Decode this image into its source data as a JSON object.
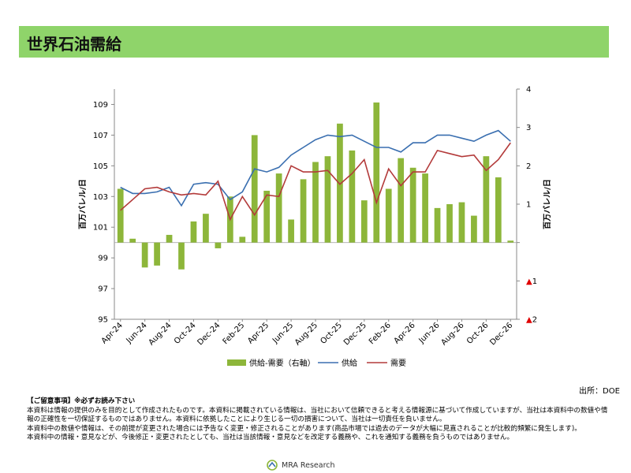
{
  "title": "世界石油需給",
  "source": "出所：DOE",
  "notice": {
    "heading": "【ご留意事項】※必ずお読み下さい",
    "lines": [
      "本資料は情報の提供のみを目的として作成されたものです。本資料に掲載されている情報は、当社において信頼できると考える情報源に基づいて作成していますが、当社は本資料中の数値や情報の正確性を一切保証するものではありません。本資料に依拠したことにより生じる一切の損害について、当社は一切責任を負いません。",
      "本資料中の数値や情報は、その前提が変更された場合には予告なく変更・修正されることがあります(商品市場では過去のデータが大幅に見直されることが比較的頻繁に発生します)。",
      "本資料中の情報・意見などが、今後修正・変更されたとしても、当社は当該情報・意見などを改定する義務や、これを通知する義務を負うものではありません。"
    ]
  },
  "footer": {
    "company": "MRA Research"
  },
  "colors": {
    "title_bar": "#8fd46a",
    "bar": "#8db63a",
    "supply": "#3a6fb0",
    "demand": "#b33a3a",
    "negative_marker": "#e00000"
  },
  "chart_data": {
    "type": "bar+line",
    "x": [
      "Apr-24",
      "May-24",
      "Jun-24",
      "Jul-24",
      "Aug-24",
      "Sep-24",
      "Oct-24",
      "Nov-24",
      "Dec-24",
      "Jan-25",
      "Feb-25",
      "Mar-25",
      "Apr-25",
      "May-25",
      "Jun-25",
      "Jul-25",
      "Aug-25",
      "Sep-25",
      "Oct-25",
      "Nov-25",
      "Dec-25",
      "Jan-26",
      "Feb-26",
      "Mar-26",
      "Apr-26",
      "May-26",
      "Jun-26",
      "Jul-26",
      "Aug-26",
      "Sep-26",
      "Oct-26",
      "Nov-26",
      "Dec-26"
    ],
    "x_tick_labels": [
      "Apr-24",
      "Jun-24",
      "Aug-24",
      "Oct-24",
      "Dec-24",
      "Feb-25",
      "Apr-25",
      "Jun-25",
      "Aug-25",
      "Oct-25",
      "Dec-25",
      "Feb-26",
      "Apr-26",
      "Jun-26",
      "Aug-26",
      "Oct-26",
      "Dec-26"
    ],
    "ylabel_left": "百万バレル/日",
    "ylabel_right": "百万バレル/日",
    "ylim_left": [
      95,
      110
    ],
    "yticks_left": [
      "95",
      "97",
      "99",
      "101",
      "103",
      "105",
      "107",
      "109"
    ],
    "ylim_right": [
      -2,
      4
    ],
    "yticks_right": [
      {
        "value": 4,
        "label": "4"
      },
      {
        "value": 3,
        "label": "3"
      },
      {
        "value": 2,
        "label": "2"
      },
      {
        "value": 1,
        "label": "1"
      },
      {
        "value": 0,
        "label": ""
      },
      {
        "value": -1,
        "label": "▲1"
      },
      {
        "value": -2,
        "label": "▲2"
      }
    ],
    "series": [
      {
        "name": "供給-需要（右軸）",
        "type": "bar",
        "axis": "right",
        "values": [
          1.4,
          0.1,
          -0.65,
          -0.6,
          0.2,
          -0.7,
          0.55,
          0.75,
          -0.15,
          1.2,
          0.15,
          2.8,
          1.35,
          1.8,
          0.6,
          1.65,
          2.1,
          2.25,
          3.1,
          2.4,
          1.1,
          3.65,
          1.4,
          2.2,
          1.95,
          1.8,
          0.9,
          1.0,
          1.05,
          0.7,
          2.25,
          1.7,
          0.05
        ]
      },
      {
        "name": "供給",
        "type": "line",
        "axis": "left",
        "values": [
          103.6,
          103.2,
          103.2,
          103.3,
          103.6,
          102.4,
          103.8,
          103.9,
          103.8,
          102.8,
          103.3,
          104.8,
          104.6,
          104.9,
          105.7,
          106.2,
          106.7,
          107.0,
          106.9,
          107.0,
          106.6,
          106.2,
          106.2,
          105.9,
          106.5,
          106.5,
          107.0,
          107.0,
          106.8,
          106.6,
          107.0,
          107.3,
          106.6
        ]
      },
      {
        "name": "需要",
        "type": "line",
        "axis": "left",
        "values": [
          102.1,
          102.8,
          103.5,
          103.6,
          103.3,
          103.1,
          103.2,
          103.1,
          104.0,
          101.5,
          103.0,
          101.8,
          103.1,
          103.0,
          105.0,
          104.6,
          104.6,
          104.7,
          103.8,
          104.5,
          105.4,
          102.6,
          104.8,
          103.7,
          104.6,
          104.6,
          106.0,
          105.8,
          105.6,
          105.7,
          104.7,
          105.4,
          106.5
        ]
      }
    ],
    "legend_position": "bottom",
    "grid": false
  }
}
